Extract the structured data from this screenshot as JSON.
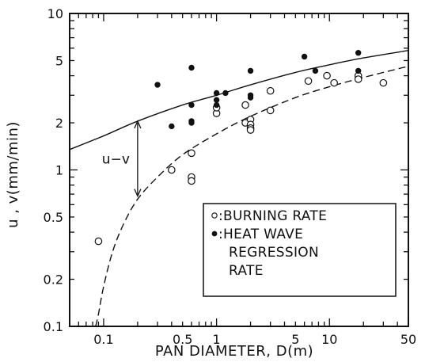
{
  "chart_data": {
    "type": "scatter",
    "xlabel": "PAN DIAMETER, D(m)",
    "ylabel": "u , v(mm/min)",
    "xscale": "log",
    "yscale": "log",
    "xlim": [
      0.05,
      50
    ],
    "ylim": [
      0.1,
      10
    ],
    "xticks": [
      0.1,
      0.5,
      1,
      5,
      10,
      50
    ],
    "xtick_labels": [
      "0.1",
      "0.5",
      "1",
      "5",
      "10",
      "50"
    ],
    "yticks": [
      0.1,
      0.2,
      0.5,
      1,
      2,
      5,
      10
    ],
    "ytick_labels": [
      "0.1",
      "0.2",
      "0.5",
      "1",
      "2",
      "5",
      "10"
    ],
    "grid": false,
    "legend_position": "bottom-right",
    "series": [
      {
        "name": ":BURNING RATE",
        "marker": "open-circle",
        "points": [
          [
            0.09,
            0.35
          ],
          [
            0.4,
            1.0
          ],
          [
            0.6,
            1.28
          ],
          [
            0.6,
            0.9
          ],
          [
            0.6,
            0.85
          ],
          [
            1.0,
            2.3
          ],
          [
            1.0,
            2.5
          ],
          [
            1.8,
            2.6
          ],
          [
            1.8,
            2.0
          ],
          [
            2.0,
            2.1
          ],
          [
            2.0,
            1.95
          ],
          [
            2.0,
            1.85
          ],
          [
            2.0,
            1.8
          ],
          [
            3.0,
            3.2
          ],
          [
            3.0,
            2.4
          ],
          [
            6.5,
            3.7
          ],
          [
            9.5,
            4.0
          ],
          [
            11.0,
            3.6
          ],
          [
            18.0,
            4.0
          ],
          [
            18.0,
            3.8
          ],
          [
            30.0,
            3.6
          ]
        ]
      },
      {
        "name": ":HEAT WAVE REGRESSION RATE",
        "marker": "filled-circle",
        "points": [
          [
            0.3,
            3.5
          ],
          [
            0.4,
            1.9
          ],
          [
            0.6,
            4.5
          ],
          [
            0.6,
            2.6
          ],
          [
            0.6,
            2.0
          ],
          [
            0.6,
            2.05
          ],
          [
            1.0,
            3.1
          ],
          [
            1.0,
            2.8
          ],
          [
            1.0,
            2.6
          ],
          [
            1.2,
            3.1
          ],
          [
            2.0,
            4.3
          ],
          [
            2.0,
            3.0
          ],
          [
            2.0,
            2.9
          ],
          [
            6.0,
            5.3
          ],
          [
            7.5,
            4.3
          ],
          [
            18.0,
            5.6
          ],
          [
            18.0,
            4.3
          ]
        ]
      }
    ],
    "curves": [
      {
        "style": "solid",
        "points": [
          [
            0.05,
            1.35
          ],
          [
            0.1,
            1.65
          ],
          [
            0.2,
            2.05
          ],
          [
            0.5,
            2.6
          ],
          [
            1,
            3.0
          ],
          [
            2,
            3.5
          ],
          [
            5,
            4.2
          ],
          [
            10,
            4.7
          ],
          [
            20,
            5.2
          ],
          [
            50,
            5.8
          ]
        ]
      },
      {
        "style": "dashed",
        "points": [
          [
            0.085,
            0.1
          ],
          [
            0.09,
            0.12
          ],
          [
            0.1,
            0.18
          ],
          [
            0.12,
            0.3
          ],
          [
            0.15,
            0.45
          ],
          [
            0.2,
            0.65
          ],
          [
            0.3,
            0.9
          ],
          [
            0.5,
            1.25
          ],
          [
            1,
            1.7
          ],
          [
            2,
            2.2
          ],
          [
            5,
            2.9
          ],
          [
            10,
            3.4
          ],
          [
            20,
            3.9
          ],
          [
            50,
            4.6
          ]
        ]
      }
    ],
    "annotations": [
      {
        "text": "u−v",
        "arrow_x": 0.2,
        "arrow_from": 0.68,
        "arrow_to": 2.05
      }
    ]
  }
}
